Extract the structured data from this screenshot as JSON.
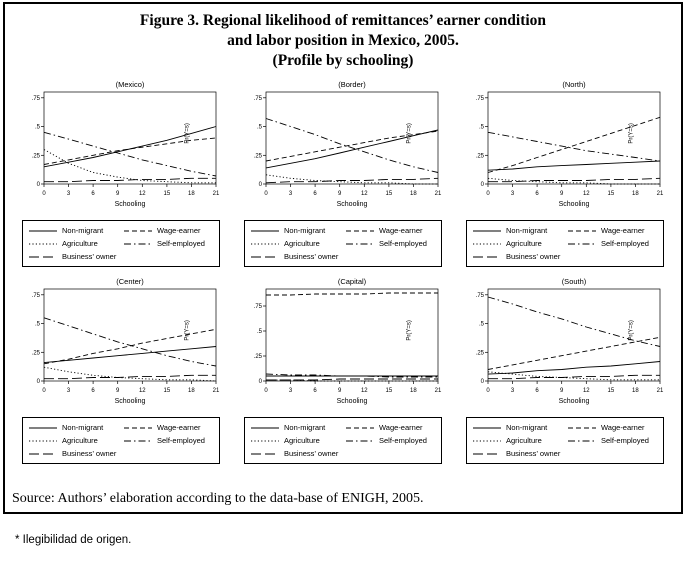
{
  "title": {
    "line1": "Figure 3. Regional likelihood of remittances’ earner condition",
    "line2": "and labor position in Mexico, 2005.",
    "line3": "(Profile by schooling)"
  },
  "source": "Source: Authors’ elaboration according to the data-base of ENIGH, 2005.",
  "footnote": "* Ilegibilidad de origen.",
  "axis": {
    "xlabel": "Schooling",
    "ylabel": "Pr(Y=s)",
    "xticks": [
      0,
      3,
      6,
      9,
      12,
      15,
      18,
      21
    ],
    "ytick_values": [
      0,
      0.25,
      0.5,
      0.75
    ],
    "ytick_labels": [
      "0",
      ".25",
      ".5",
      ".75"
    ]
  },
  "legend": {
    "items": [
      {
        "label": "Non-migrant",
        "style": "solid"
      },
      {
        "label": "Wage-earner",
        "style": "dashed"
      },
      {
        "label": "Agriculture",
        "style": "dotted"
      },
      {
        "label": "Self-employed",
        "style": "dashdot"
      },
      {
        "label": "Business’ owner",
        "style": "longdash"
      }
    ]
  },
  "chart_data": [
    {
      "type": "line",
      "id": "mexico",
      "title": "(Mexico)",
      "xlabel": "Schooling",
      "ylabel": "Pr(Y=s)",
      "x": [
        0,
        3,
        6,
        9,
        12,
        15,
        18,
        21
      ],
      "ylim": [
        0,
        0.8
      ],
      "yticks": [
        0,
        0.25,
        0.5,
        0.75
      ],
      "grid": false,
      "series": [
        {
          "name": "Non-migrant",
          "style": "solid",
          "values": [
            0.15,
            0.19,
            0.23,
            0.28,
            0.33,
            0.38,
            0.44,
            0.5
          ]
        },
        {
          "name": "Wage-earner",
          "style": "dashed",
          "values": [
            0.17,
            0.21,
            0.25,
            0.29,
            0.32,
            0.35,
            0.38,
            0.4
          ]
        },
        {
          "name": "Agriculture",
          "style": "dotted",
          "values": [
            0.3,
            0.18,
            0.1,
            0.06,
            0.03,
            0.02,
            0.01,
            0.01
          ]
        },
        {
          "name": "Self-employed",
          "style": "dashdot",
          "values": [
            0.45,
            0.39,
            0.33,
            0.27,
            0.21,
            0.16,
            0.11,
            0.07
          ]
        },
        {
          "name": "Business’ owner",
          "style": "longdash",
          "values": [
            0.02,
            0.02,
            0.03,
            0.03,
            0.04,
            0.04,
            0.05,
            0.05
          ]
        }
      ]
    },
    {
      "type": "line",
      "id": "border",
      "title": "(Border)",
      "xlabel": "Schooling",
      "ylabel": "Pr(Y=s)",
      "x": [
        0,
        3,
        6,
        9,
        12,
        15,
        18,
        21
      ],
      "ylim": [
        0,
        0.8
      ],
      "yticks": [
        0,
        0.25,
        0.5,
        0.75
      ],
      "grid": false,
      "series": [
        {
          "name": "Non-migrant",
          "style": "solid",
          "values": [
            0.14,
            0.18,
            0.22,
            0.27,
            0.32,
            0.37,
            0.42,
            0.47
          ]
        },
        {
          "name": "Wage-earner",
          "style": "dashed",
          "values": [
            0.2,
            0.24,
            0.28,
            0.32,
            0.36,
            0.4,
            0.43,
            0.46
          ]
        },
        {
          "name": "Agriculture",
          "style": "dotted",
          "values": [
            0.08,
            0.05,
            0.03,
            0.02,
            0.01,
            0.01,
            0.0,
            0.0
          ]
        },
        {
          "name": "Self-employed",
          "style": "dashdot",
          "values": [
            0.57,
            0.5,
            0.43,
            0.35,
            0.28,
            0.21,
            0.15,
            0.1
          ]
        },
        {
          "name": "Business’ owner",
          "style": "longdash",
          "values": [
            0.01,
            0.02,
            0.02,
            0.03,
            0.03,
            0.04,
            0.04,
            0.05
          ]
        }
      ]
    },
    {
      "type": "line",
      "id": "north",
      "title": "(North)",
      "xlabel": "Schooling",
      "ylabel": "Pr(Y=s)",
      "x": [
        0,
        3,
        6,
        9,
        12,
        15,
        18,
        21
      ],
      "ylim": [
        0,
        0.8
      ],
      "yticks": [
        0,
        0.25,
        0.5,
        0.75
      ],
      "grid": false,
      "series": [
        {
          "name": "Non-migrant",
          "style": "solid",
          "values": [
            0.12,
            0.13,
            0.15,
            0.16,
            0.17,
            0.18,
            0.19,
            0.2
          ]
        },
        {
          "name": "Wage-earner",
          "style": "dashed",
          "values": [
            0.1,
            0.16,
            0.23,
            0.3,
            0.37,
            0.44,
            0.51,
            0.58
          ]
        },
        {
          "name": "Agriculture",
          "style": "dotted",
          "values": [
            0.05,
            0.03,
            0.02,
            0.01,
            0.01,
            0.0,
            0.0,
            0.0
          ]
        },
        {
          "name": "Self-employed",
          "style": "dashdot",
          "values": [
            0.45,
            0.41,
            0.37,
            0.33,
            0.29,
            0.26,
            0.23,
            0.2
          ]
        },
        {
          "name": "Business’ owner",
          "style": "longdash",
          "values": [
            0.02,
            0.02,
            0.03,
            0.03,
            0.03,
            0.04,
            0.04,
            0.05
          ]
        }
      ]
    },
    {
      "type": "line",
      "id": "center",
      "title": "(Center)",
      "xlabel": "Schooling",
      "ylabel": "Pr(Y=s)",
      "x": [
        0,
        3,
        6,
        9,
        12,
        15,
        18,
        21
      ],
      "ylim": [
        0,
        0.8
      ],
      "yticks": [
        0,
        0.25,
        0.5,
        0.75
      ],
      "grid": false,
      "series": [
        {
          "name": "Non-migrant",
          "style": "solid",
          "values": [
            0.16,
            0.18,
            0.2,
            0.22,
            0.24,
            0.26,
            0.28,
            0.3
          ]
        },
        {
          "name": "Wage-earner",
          "style": "dashed",
          "values": [
            0.15,
            0.19,
            0.24,
            0.28,
            0.33,
            0.37,
            0.41,
            0.45
          ]
        },
        {
          "name": "Agriculture",
          "style": "dotted",
          "values": [
            0.12,
            0.08,
            0.05,
            0.03,
            0.02,
            0.01,
            0.01,
            0.0
          ]
        },
        {
          "name": "Self-employed",
          "style": "dashdot",
          "values": [
            0.55,
            0.48,
            0.41,
            0.34,
            0.28,
            0.22,
            0.17,
            0.13
          ]
        },
        {
          "name": "Business’ owner",
          "style": "longdash",
          "values": [
            0.02,
            0.02,
            0.03,
            0.03,
            0.04,
            0.04,
            0.05,
            0.05
          ]
        }
      ]
    },
    {
      "type": "line",
      "id": "capital",
      "title": "(Capital)",
      "xlabel": "Schooling",
      "ylabel": "Pr(Y=s)",
      "x": [
        0,
        3,
        6,
        9,
        12,
        15,
        18,
        21
      ],
      "ylim": [
        0,
        0.92
      ],
      "yticks": [
        0,
        0.25,
        0.5,
        0.75
      ],
      "grid": false,
      "series": [
        {
          "name": "Non-migrant",
          "style": "solid",
          "values": [
            0.05,
            0.05,
            0.05,
            0.05,
            0.05,
            0.05,
            0.05,
            0.05
          ]
        },
        {
          "name": "Wage-earner",
          "style": "dashed",
          "values": [
            0.86,
            0.86,
            0.87,
            0.87,
            0.87,
            0.88,
            0.88,
            0.88
          ]
        },
        {
          "name": "Agriculture",
          "style": "dotted",
          "values": [
            0.01,
            0.01,
            0.0,
            0.0,
            0.0,
            0.0,
            0.0,
            0.0
          ]
        },
        {
          "name": "Self-employed",
          "style": "dashdot",
          "values": [
            0.07,
            0.06,
            0.06,
            0.05,
            0.05,
            0.04,
            0.04,
            0.04
          ]
        },
        {
          "name": "Business’ owner",
          "style": "longdash",
          "values": [
            0.01,
            0.01,
            0.01,
            0.02,
            0.02,
            0.02,
            0.02,
            0.02
          ]
        }
      ]
    },
    {
      "type": "line",
      "id": "south",
      "title": "(South)",
      "xlabel": "Schooling",
      "ylabel": "Pr(Y=s)",
      "x": [
        0,
        3,
        6,
        9,
        12,
        15,
        18,
        21
      ],
      "ylim": [
        0,
        0.8
      ],
      "yticks": [
        0,
        0.25,
        0.5,
        0.75
      ],
      "grid": false,
      "series": [
        {
          "name": "Non-migrant",
          "style": "solid",
          "values": [
            0.06,
            0.07,
            0.09,
            0.1,
            0.12,
            0.13,
            0.15,
            0.17
          ]
        },
        {
          "name": "Wage-earner",
          "style": "dashed",
          "values": [
            0.1,
            0.14,
            0.18,
            0.22,
            0.26,
            0.3,
            0.34,
            0.38
          ]
        },
        {
          "name": "Agriculture",
          "style": "dotted",
          "values": [
            0.08,
            0.06,
            0.04,
            0.03,
            0.02,
            0.01,
            0.01,
            0.01
          ]
        },
        {
          "name": "Self-employed",
          "style": "dashdot",
          "values": [
            0.73,
            0.67,
            0.6,
            0.54,
            0.47,
            0.41,
            0.35,
            0.3
          ]
        },
        {
          "name": "Business’ owner",
          "style": "longdash",
          "values": [
            0.02,
            0.02,
            0.03,
            0.03,
            0.04,
            0.04,
            0.05,
            0.05
          ]
        }
      ]
    }
  ]
}
